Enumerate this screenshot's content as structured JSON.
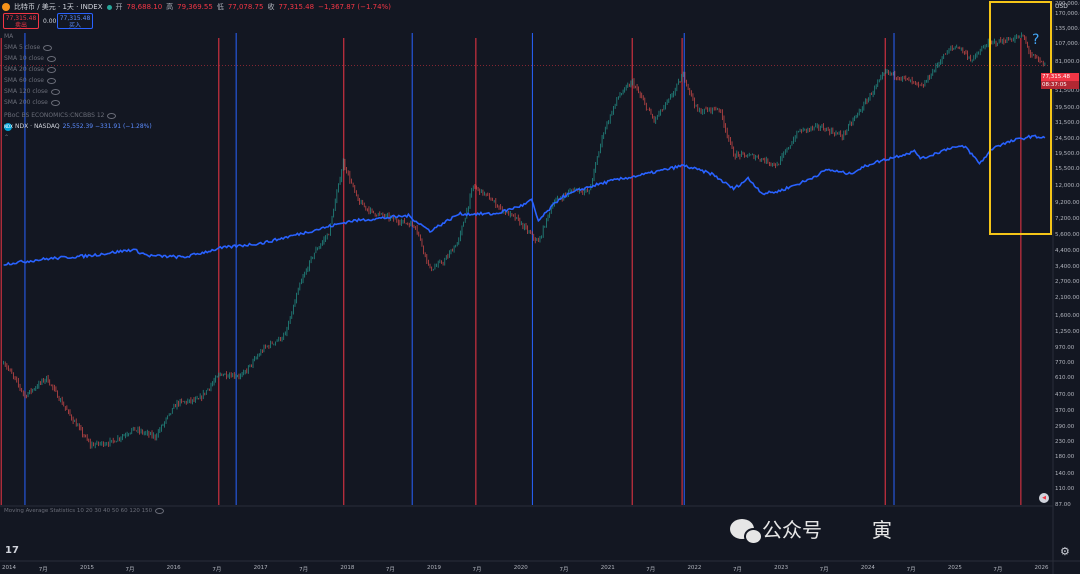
{
  "header": {
    "title": "比特币 / 美元 · 1天 · INDEX",
    "open_label": "开",
    "open_value": "78,688.10",
    "high_label": "高",
    "high_value": "79,369.55",
    "low_label": "低",
    "low_value": "77,078.75",
    "close_label": "收",
    "close_value": "77,315.48",
    "change_value": "−1,367.87 (−1.74%)",
    "sell_price": "77,315.48",
    "sell_label": "卖出",
    "spread": "0.00",
    "buy_price": "77,315.48",
    "buy_label": "买入"
  },
  "indicators": [
    "MA",
    "SMA 5 close",
    "SMA 10 close",
    "SMA 20 close",
    "SMA 60 close",
    "SMA 120 close",
    "SMA 200 close",
    "PBoC BS ECONOMICS:CNCBBS 12"
  ],
  "compare": {
    "badge": "NDX",
    "name": "NDX · NASDAQ",
    "value": "25,552.39 −331.91 (−1.28%)"
  },
  "axis": {
    "currency": "USD",
    "last_price": "77,315.48",
    "countdown": "08:37:05"
  },
  "lower_pane_label": "Moving Average Statistics 10 20 30 40 50 60 120 150",
  "question_mark": "?",
  "watermark": {
    "text": "公众号",
    "text2": "寅"
  },
  "colors": {
    "background": "#131722",
    "ndx_line": "#2962ff",
    "candle_up": "#26a69a",
    "candle_down": "#ef5350",
    "red_vline": "#f23645",
    "blue_vline": "#2962ff",
    "highlight_box": "#f5c518"
  },
  "chart_data": {
    "type": "line",
    "scale": "log",
    "y_ticks": [
      "200,000.00",
      "170,000.00",
      "135,000.00",
      "107,000.00",
      "81,000.00",
      "51,500.00",
      "39,500.00",
      "31,500.00",
      "24,500.00",
      "19,500.00",
      "15,500.00",
      "12,000.00",
      "9,200.00",
      "7,200.00",
      "5,600.00",
      "4,400.00",
      "3,400.00",
      "2,700.00",
      "2,100.00",
      "1,600.00",
      "1,250.00",
      "970.00",
      "770.00",
      "610.00",
      "470.00",
      "370.00",
      "290.00",
      "230.00",
      "180.00",
      "140.00",
      "110.00",
      "87.00"
    ],
    "x_ticks": [
      "2014",
      "7月",
      "2015",
      "7月",
      "2016",
      "7月",
      "2017",
      "7月",
      "2018",
      "7月",
      "2019",
      "7月",
      "2020",
      "7月",
      "2021",
      "7月",
      "2022",
      "7月",
      "2023",
      "7月",
      "2024",
      "7月",
      "2025",
      "7月",
      "2026"
    ],
    "series": [
      {
        "name": "比特币 / 美元",
        "points": [
          [
            "2014-01",
            800
          ],
          [
            "2014-04",
            470
          ],
          [
            "2014-07",
            620
          ],
          [
            "2014-10",
            360
          ],
          [
            "2015-01",
            220
          ],
          [
            "2015-04",
            230
          ],
          [
            "2015-07",
            280
          ],
          [
            "2015-10",
            250
          ],
          [
            "2016-01",
            420
          ],
          [
            "2016-04",
            440
          ],
          [
            "2016-07",
            660
          ],
          [
            "2016-10",
            640
          ],
          [
            "2017-01",
            980
          ],
          [
            "2017-04",
            1200
          ],
          [
            "2017-06",
            2600
          ],
          [
            "2017-08",
            4300
          ],
          [
            "2017-10",
            5800
          ],
          [
            "2017-12",
            17500
          ],
          [
            "2018-02",
            9500
          ],
          [
            "2018-04",
            8000
          ],
          [
            "2018-07",
            7200
          ],
          [
            "2018-10",
            6500
          ],
          [
            "2018-12",
            3300
          ],
          [
            "2019-02",
            3800
          ],
          [
            "2019-04",
            5200
          ],
          [
            "2019-06",
            12000
          ],
          [
            "2019-08",
            10200
          ],
          [
            "2019-10",
            8300
          ],
          [
            "2019-12",
            7200
          ],
          [
            "2020-03",
            5000
          ],
          [
            "2020-05",
            9300
          ],
          [
            "2020-08",
            11500
          ],
          [
            "2020-10",
            11000
          ],
          [
            "2020-12",
            28000
          ],
          [
            "2021-02",
            48000
          ],
          [
            "2021-04",
            60000
          ],
          [
            "2021-07",
            33000
          ],
          [
            "2021-09",
            45000
          ],
          [
            "2021-11",
            67000
          ],
          [
            "2022-01",
            38000
          ],
          [
            "2022-04",
            40000
          ],
          [
            "2022-06",
            19500
          ],
          [
            "2022-09",
            19000
          ],
          [
            "2022-12",
            16500
          ],
          [
            "2023-03",
            28000
          ],
          [
            "2023-06",
            30000
          ],
          [
            "2023-09",
            26000
          ],
          [
            "2023-12",
            42000
          ],
          [
            "2024-03",
            70000
          ],
          [
            "2024-06",
            62000
          ],
          [
            "2024-08",
            55000
          ],
          [
            "2024-11",
            90000
          ],
          [
            "2024-12",
            100000
          ],
          [
            "2025-01",
            104000
          ],
          [
            "2025-03",
            84000
          ],
          [
            "2025-05",
            108000
          ],
          [
            "2025-08",
            115000
          ],
          [
            "2025-10",
            122000
          ],
          [
            "2025-11",
            92000
          ],
          [
            "2026-01",
            77315
          ]
        ]
      },
      {
        "name": "NDX · NASDAQ",
        "points": [
          [
            "2014-01",
            3600
          ],
          [
            "2014-07",
            3900
          ],
          [
            "2015-01",
            4100
          ],
          [
            "2015-07",
            4500
          ],
          [
            "2015-09",
            4100
          ],
          [
            "2016-02",
            4000
          ],
          [
            "2016-07",
            4600
          ],
          [
            "2017-01",
            5000
          ],
          [
            "2017-07",
            5900
          ],
          [
            "2018-01",
            7000
          ],
          [
            "2018-09",
            7600
          ],
          [
            "2018-12",
            6000
          ],
          [
            "2019-04",
            7800
          ],
          [
            "2019-09",
            7800
          ],
          [
            "2020-01",
            9000
          ],
          [
            "2020-02",
            9700
          ],
          [
            "2020-03",
            7000
          ],
          [
            "2020-06",
            10000
          ],
          [
            "2020-09",
            11500
          ],
          [
            "2021-01",
            13000
          ],
          [
            "2021-06",
            14500
          ],
          [
            "2021-11",
            16500
          ],
          [
            "2022-03",
            14500
          ],
          [
            "2022-06",
            11500
          ],
          [
            "2022-08",
            13500
          ],
          [
            "2022-10",
            10700
          ],
          [
            "2022-12",
            11000
          ],
          [
            "2023-04",
            13000
          ],
          [
            "2023-07",
            15500
          ],
          [
            "2023-10",
            14500
          ],
          [
            "2024-01",
            17000
          ],
          [
            "2024-07",
            20500
          ],
          [
            "2024-08",
            18300
          ],
          [
            "2024-12",
            21800
          ],
          [
            "2025-02",
            22000
          ],
          [
            "2025-04",
            17000
          ],
          [
            "2025-06",
            22000
          ],
          [
            "2025-09",
            24500
          ],
          [
            "2025-11",
            25800
          ],
          [
            "2026-01",
            25552
          ]
        ]
      }
    ],
    "vertical_lines": {
      "red": [
        "2014-01-05",
        "2016-07-09",
        "2017-12-17",
        "2019-06-26",
        "2021-04-14",
        "2021-11-10",
        "2024-03-14",
        "2025-10-06"
      ],
      "blue": [
        "2014-04-15",
        "2016-09-20",
        "2018-10-01",
        "2020-02-19",
        "2021-11-19",
        "2024-04-20"
      ]
    }
  }
}
